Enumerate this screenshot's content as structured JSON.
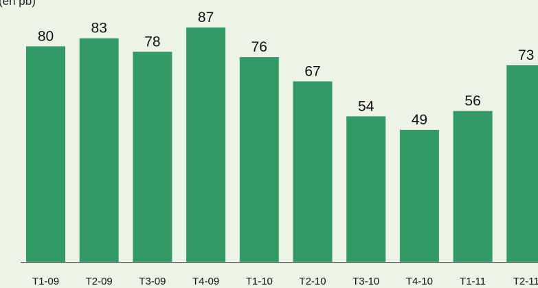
{
  "chart_data": {
    "type": "bar",
    "unit_label": "(en pb)",
    "categories": [
      "T1-09",
      "T2-09",
      "T3-09",
      "T4-09",
      "T1-10",
      "T2-10",
      "T3-10",
      "T4-10",
      "T1-11",
      "T2-11"
    ],
    "values": [
      80,
      83,
      78,
      87,
      76,
      67,
      54,
      49,
      56,
      73
    ],
    "data_labels": [
      "80",
      "83",
      "78",
      "87",
      "76",
      "67",
      "54",
      "49",
      "56",
      "73"
    ],
    "ylim": [
      0,
      87
    ],
    "grid": false,
    "legend": "none",
    "colors": {
      "bar": "#339966",
      "background": "#eef3e8",
      "axis": "#333333",
      "text": "#111111"
    }
  }
}
